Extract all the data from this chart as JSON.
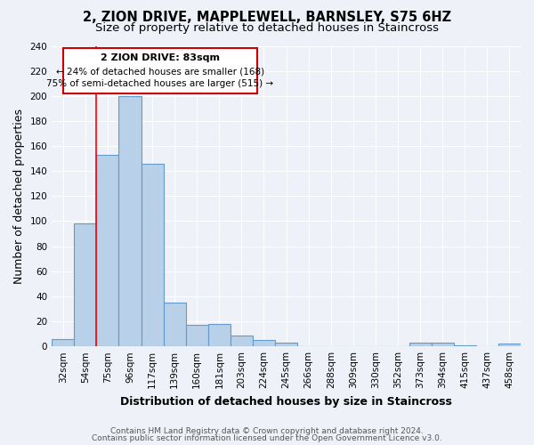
{
  "title": "2, ZION DRIVE, MAPPLEWELL, BARNSLEY, S75 6HZ",
  "subtitle": "Size of property relative to detached houses in Staincross",
  "xlabel": "Distribution of detached houses by size in Staincross",
  "ylabel": "Number of detached properties",
  "bar_labels": [
    "32sqm",
    "54sqm",
    "75sqm",
    "96sqm",
    "117sqm",
    "139sqm",
    "160sqm",
    "181sqm",
    "203sqm",
    "224sqm",
    "245sqm",
    "266sqm",
    "288sqm",
    "309sqm",
    "330sqm",
    "352sqm",
    "373sqm",
    "394sqm",
    "415sqm",
    "437sqm",
    "458sqm"
  ],
  "bar_values": [
    6,
    98,
    153,
    200,
    146,
    35,
    17,
    18,
    9,
    5,
    3,
    0,
    0,
    0,
    0,
    0,
    3,
    3,
    1,
    0,
    2
  ],
  "bar_color": "#b8d0e8",
  "bar_edge_color": "#6699cc",
  "ylim": [
    0,
    240
  ],
  "yticks": [
    0,
    20,
    40,
    60,
    80,
    100,
    120,
    140,
    160,
    180,
    200,
    220,
    240
  ],
  "red_line_x": 2.0,
  "annotation_text_line1": "2 ZION DRIVE: 83sqm",
  "annotation_text_line2": "← 24% of detached houses are smaller (168)",
  "annotation_text_line3": "75% of semi-detached houses are larger (515) →",
  "annotation_box_color": "#ffffff",
  "annotation_box_edge_color": "#cc0000",
  "footer1": "Contains HM Land Registry data © Crown copyright and database right 2024.",
  "footer2": "Contains public sector information licensed under the Open Government Licence v3.0.",
  "background_color": "#eef2f8",
  "grid_color": "#ffffff",
  "title_fontsize": 10.5,
  "subtitle_fontsize": 9.5,
  "xlabel_fontsize": 9,
  "ylabel_fontsize": 9,
  "tick_fontsize": 7.5,
  "footer_fontsize": 6.5,
  "ann_fontsize_title": 8,
  "ann_fontsize_body": 7.5
}
